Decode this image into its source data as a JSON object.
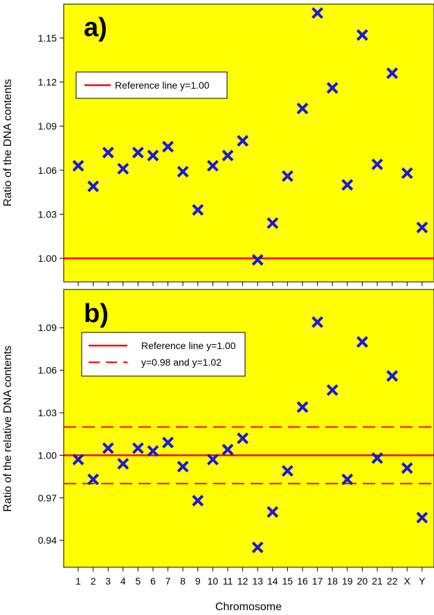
{
  "colors": {
    "plot_background": "#ffff00",
    "marker": "#1a1ad6",
    "reference_line": "#ff0000",
    "frame": "#000000"
  },
  "chart_data": [
    {
      "type": "scatter",
      "panel_label": "a)",
      "xlabel": "",
      "ylabel": "Ratio of the DNA contents",
      "categories": [
        "1",
        "2",
        "3",
        "4",
        "5",
        "6",
        "7",
        "8",
        "9",
        "10",
        "11",
        "12",
        "13",
        "14",
        "15",
        "16",
        "17",
        "18",
        "19",
        "20",
        "21",
        "22",
        "X",
        "Y"
      ],
      "yticks": [
        "1.00",
        "1.03",
        "1.06",
        "1.09",
        "1.12",
        "1.15"
      ],
      "ylim": [
        0.984,
        1.173
      ],
      "grid": false,
      "marker": "x",
      "series": [
        {
          "values": [
            1.063,
            1.049,
            1.072,
            1.061,
            1.072,
            1.07,
            1.076,
            1.059,
            1.033,
            1.063,
            1.07,
            1.08,
            0.999,
            1.024,
            1.056,
            1.102,
            1.167,
            1.116,
            1.05,
            1.152,
            1.064,
            1.126,
            1.058,
            1.021
          ]
        }
      ],
      "reference_lines": [
        {
          "y": 1.0,
          "style": "solid",
          "label": "Reference line y=1.00"
        }
      ],
      "legend": {
        "position": "top-left",
        "entries": [
          {
            "label": "Reference line y=1.00",
            "style": "solid"
          }
        ]
      }
    },
    {
      "type": "scatter",
      "panel_label": "b)",
      "xlabel": "Chromosome",
      "ylabel": "Ratio of the relative DNA contents",
      "categories": [
        "1",
        "2",
        "3",
        "4",
        "5",
        "6",
        "7",
        "8",
        "9",
        "10",
        "11",
        "12",
        "13",
        "14",
        "15",
        "16",
        "17",
        "18",
        "19",
        "20",
        "21",
        "22",
        "X",
        "Y"
      ],
      "yticks": [
        "0.94",
        "0.97",
        "1.00",
        "1.03",
        "1.06",
        "1.09"
      ],
      "ylim": [
        0.921,
        1.117
      ],
      "grid": false,
      "marker": "x",
      "series": [
        {
          "values": [
            0.997,
            0.983,
            1.005,
            0.994,
            1.005,
            1.003,
            1.009,
            0.992,
            0.968,
            0.997,
            1.004,
            1.012,
            0.935,
            0.96,
            0.989,
            1.034,
            1.094,
            1.046,
            0.983,
            1.08,
            0.998,
            1.056,
            0.991,
            0.956
          ]
        }
      ],
      "reference_lines": [
        {
          "y": 1.0,
          "style": "solid",
          "label": "Reference line y=1.00"
        },
        {
          "y": 0.98,
          "style": "dashed",
          "label": "y=0.98 and y=1.02"
        },
        {
          "y": 1.02,
          "style": "dashed",
          "label": "y=0.98 and y=1.02"
        }
      ],
      "legend": {
        "position": "top-left",
        "entries": [
          {
            "label": "Reference line y=1.00",
            "style": "solid"
          },
          {
            "label": "y=0.98 and y=1.02",
            "style": "dashed"
          }
        ]
      }
    }
  ]
}
